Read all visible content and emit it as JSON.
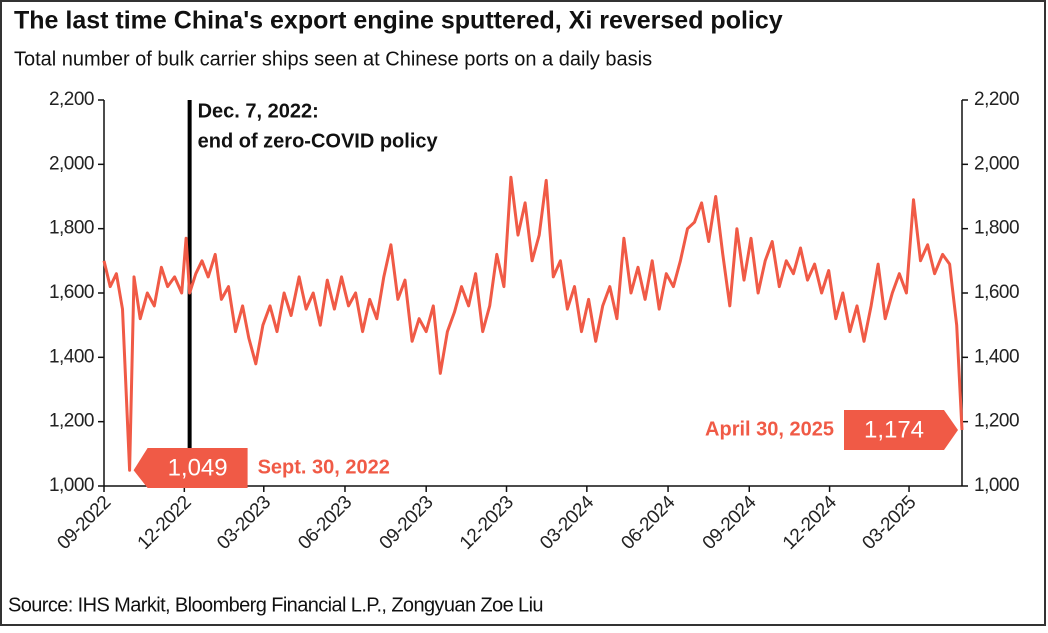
{
  "chart_data": {
    "type": "line",
    "title": "The last time China's export engine sputtered, Xi reversed policy",
    "subtitle": "Total number of bulk carrier ships seen at Chinese ports on a daily basis",
    "source": "Source: IHS Markit, Bloomberg Financial L.P., Zongyuan Zoe Liu",
    "x": [
      "2022-09-01",
      "2022-09-08",
      "2022-09-15",
      "2022-09-22",
      "2022-09-30",
      "2022-10-05",
      "2022-10-12",
      "2022-10-20",
      "2022-10-28",
      "2022-11-05",
      "2022-11-12",
      "2022-11-20",
      "2022-11-28",
      "2022-12-03",
      "2022-12-07",
      "2022-12-14",
      "2022-12-21",
      "2022-12-28",
      "2023-01-05",
      "2023-01-12",
      "2023-01-20",
      "2023-01-28",
      "2023-02-05",
      "2023-02-12",
      "2023-02-20",
      "2023-02-28",
      "2023-03-08",
      "2023-03-16",
      "2023-03-24",
      "2023-04-01",
      "2023-04-10",
      "2023-04-18",
      "2023-04-26",
      "2023-05-04",
      "2023-05-12",
      "2023-05-20",
      "2023-05-28",
      "2023-06-05",
      "2023-06-13",
      "2023-06-21",
      "2023-06-29",
      "2023-07-07",
      "2023-07-15",
      "2023-07-23",
      "2023-07-31",
      "2023-08-08",
      "2023-08-16",
      "2023-08-24",
      "2023-09-01",
      "2023-09-09",
      "2023-09-17",
      "2023-09-25",
      "2023-10-03",
      "2023-10-11",
      "2023-10-19",
      "2023-10-27",
      "2023-11-04",
      "2023-11-12",
      "2023-11-20",
      "2023-11-28",
      "2023-12-06",
      "2023-12-14",
      "2023-12-22",
      "2023-12-30",
      "2024-01-07",
      "2024-01-15",
      "2024-01-23",
      "2024-01-31",
      "2024-02-08",
      "2024-02-16",
      "2024-02-24",
      "2024-03-03",
      "2024-03-11",
      "2024-03-19",
      "2024-03-27",
      "2024-04-04",
      "2024-04-12",
      "2024-04-20",
      "2024-04-28",
      "2024-05-06",
      "2024-05-14",
      "2024-05-22",
      "2024-05-30",
      "2024-06-07",
      "2024-06-15",
      "2024-06-23",
      "2024-07-01",
      "2024-07-09",
      "2024-07-17",
      "2024-07-25",
      "2024-08-02",
      "2024-08-10",
      "2024-08-18",
      "2024-08-26",
      "2024-09-03",
      "2024-09-11",
      "2024-09-19",
      "2024-09-27",
      "2024-10-05",
      "2024-10-13",
      "2024-10-21",
      "2024-10-29",
      "2024-11-06",
      "2024-11-14",
      "2024-11-22",
      "2024-11-30",
      "2024-12-08",
      "2024-12-16",
      "2024-12-24",
      "2025-01-01",
      "2025-01-09",
      "2025-01-17",
      "2025-01-25",
      "2025-02-02",
      "2025-02-10",
      "2025-02-18",
      "2025-02-26",
      "2025-03-06",
      "2025-03-14",
      "2025-03-22",
      "2025-03-30",
      "2025-04-08",
      "2025-04-16",
      "2025-04-24",
      "2025-04-30"
    ],
    "series": [
      {
        "name": "Bulk carrier ships",
        "color": "#f05a46",
        "values": [
          1700,
          1620,
          1660,
          1550,
          1049,
          1650,
          1520,
          1600,
          1560,
          1680,
          1620,
          1650,
          1600,
          1770,
          1600,
          1660,
          1700,
          1650,
          1720,
          1580,
          1620,
          1480,
          1560,
          1460,
          1380,
          1500,
          1560,
          1480,
          1600,
          1530,
          1650,
          1550,
          1600,
          1500,
          1640,
          1550,
          1650,
          1560,
          1600,
          1480,
          1580,
          1520,
          1650,
          1750,
          1580,
          1640,
          1450,
          1520,
          1480,
          1560,
          1350,
          1480,
          1540,
          1620,
          1560,
          1660,
          1480,
          1560,
          1720,
          1620,
          1960,
          1780,
          1880,
          1700,
          1780,
          1950,
          1650,
          1700,
          1550,
          1620,
          1480,
          1580,
          1450,
          1560,
          1620,
          1520,
          1770,
          1600,
          1680,
          1580,
          1700,
          1550,
          1660,
          1620,
          1700,
          1800,
          1820,
          1880,
          1760,
          1900,
          1720,
          1560,
          1800,
          1640,
          1770,
          1600,
          1700,
          1760,
          1620,
          1700,
          1660,
          1740,
          1640,
          1690,
          1600,
          1670,
          1520,
          1600,
          1480,
          1560,
          1450,
          1560,
          1690,
          1520,
          1600,
          1660,
          1600,
          1890,
          1700,
          1750,
          1660,
          1720,
          1690,
          1500,
          1174
        ]
      }
    ],
    "xlim": [
      "2022-09-01",
      "2025-04-30"
    ],
    "xticks": [
      {
        "value": "2022-09-01",
        "label": "09-2022"
      },
      {
        "value": "2022-12-01",
        "label": "12-2022"
      },
      {
        "value": "2023-03-01",
        "label": "03-2023"
      },
      {
        "value": "2023-06-01",
        "label": "06-2023"
      },
      {
        "value": "2023-09-01",
        "label": "09-2023"
      },
      {
        "value": "2023-12-01",
        "label": "12-2023"
      },
      {
        "value": "2024-03-01",
        "label": "03-2024"
      },
      {
        "value": "2024-06-01",
        "label": "06-2024"
      },
      {
        "value": "2024-09-01",
        "label": "09-2024"
      },
      {
        "value": "2024-12-01",
        "label": "12-2024"
      },
      {
        "value": "2025-03-01",
        "label": "03-2025"
      }
    ],
    "ylim": [
      1000,
      2200
    ],
    "yticks": [
      {
        "value": 1000,
        "label": "1,000"
      },
      {
        "value": 1200,
        "label": "1,200"
      },
      {
        "value": 1400,
        "label": "1,400"
      },
      {
        "value": 1600,
        "label": "1,600"
      },
      {
        "value": 1800,
        "label": "1,800"
      },
      {
        "value": 2000,
        "label": "2,000"
      },
      {
        "value": 2200,
        "label": "2,200"
      }
    ],
    "event": {
      "x": "2022-12-07",
      "lines": [
        "Dec. 7, 2022:",
        "end of zero-COVID policy"
      ]
    },
    "callouts": [
      {
        "x": "2022-09-30",
        "value": 1049,
        "value_label": "1,049",
        "text": "Sept. 30, 2022"
      },
      {
        "x": "2025-04-30",
        "value": 1174,
        "value_label": "1,174",
        "text": "April 30, 2025"
      }
    ]
  }
}
